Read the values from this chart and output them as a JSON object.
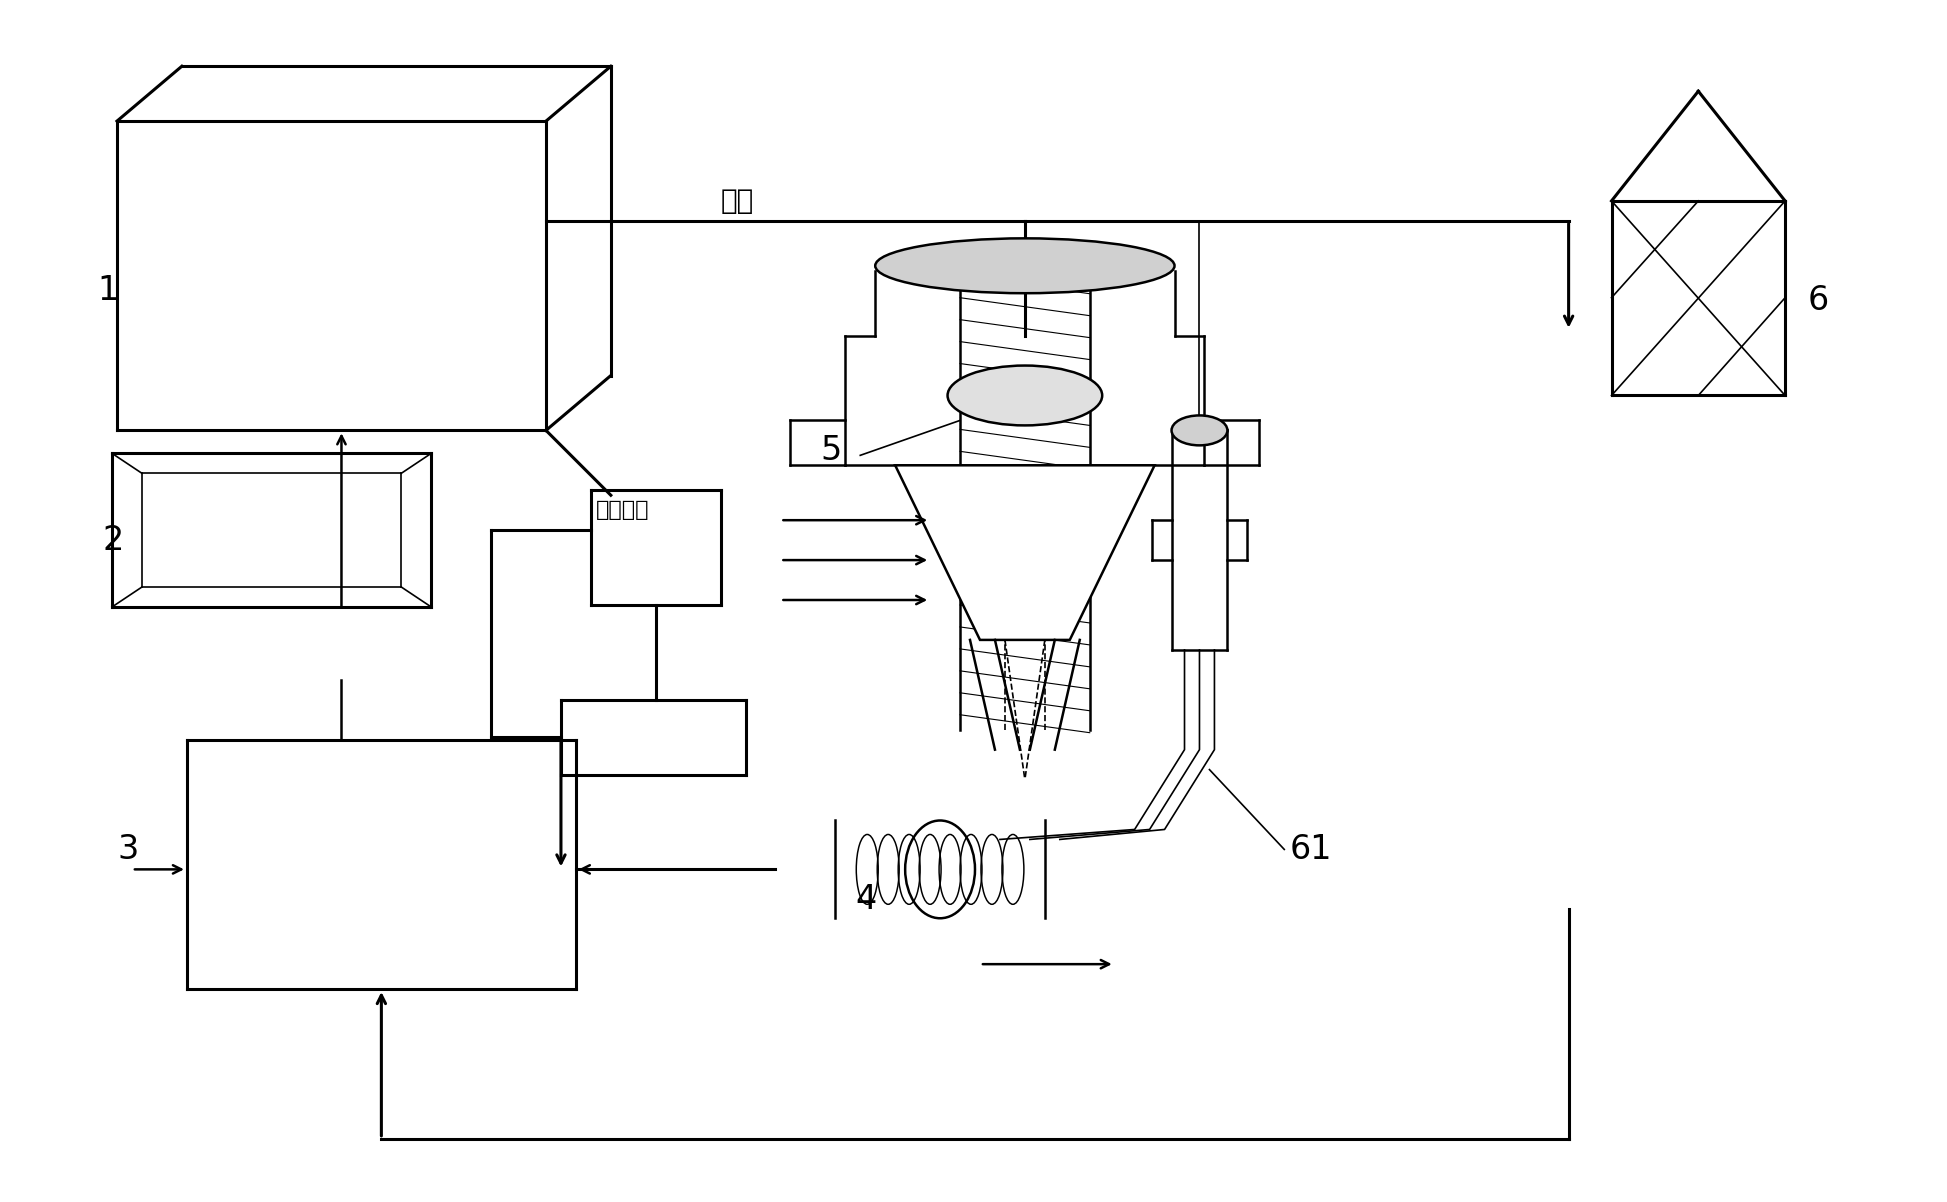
{
  "bg_color": "#ffffff",
  "line_color": "#000000",
  "figsize": [
    19.47,
    12.02
  ],
  "dpi": 100,
  "guangxian_text": "光纤",
  "songfen_text": "送粉管路",
  "label_fontsize": 22,
  "text_fontsize": 18,
  "lw_main": 1.8,
  "lw_thick": 2.2,
  "lw_thin": 1.2
}
